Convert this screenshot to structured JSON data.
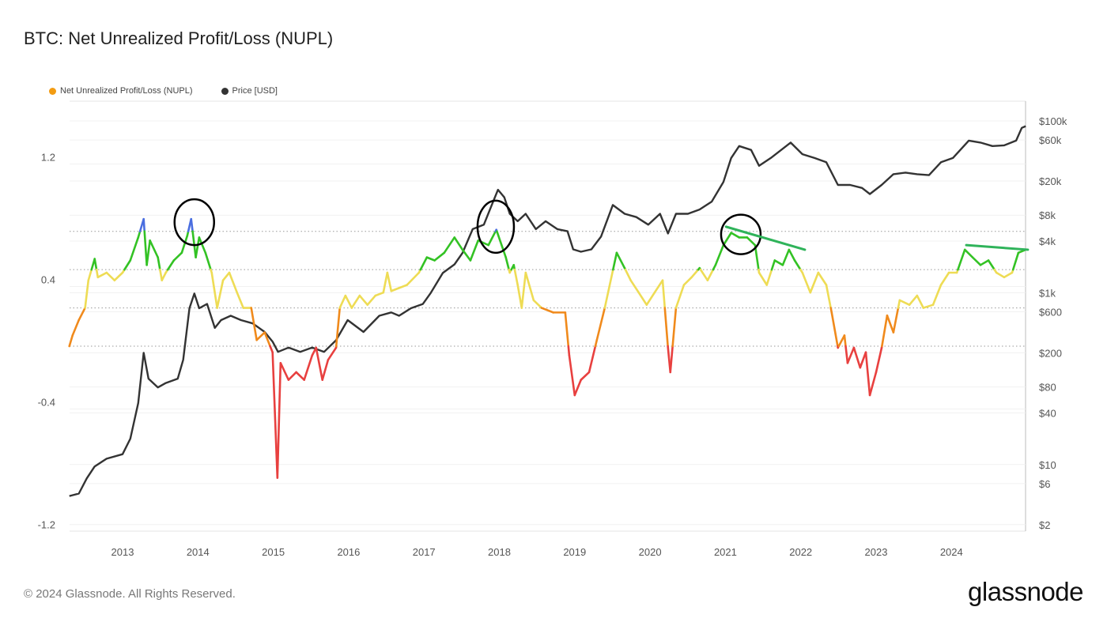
{
  "title": "BTC: Net Unrealized Profit/Loss (NUPL)",
  "footer": "© 2024 Glassnode. All Rights Reserved.",
  "logo": "glassnode",
  "chart_data": {
    "type": "line",
    "title": "BTC: Net Unrealized Profit/Loss (NUPL)",
    "legend": {
      "placement": "top-left",
      "entries": [
        {
          "name": "Net Unrealized Profit/Loss (NUPL)",
          "color": "#f39c12"
        },
        {
          "name": "Price [USD]",
          "color": "#333333"
        }
      ]
    },
    "x_axis": {
      "type": "date",
      "range": [
        "2012-04-17",
        "2024-12-26"
      ],
      "ticks": [
        "2013",
        "2014",
        "2015",
        "2016",
        "2017",
        "2018",
        "2019",
        "2020",
        "2021",
        "2022",
        "2023",
        "2024"
      ]
    },
    "y_left": {
      "range": [
        -1.2,
        1.5
      ],
      "ticks": [
        1.2,
        0.4,
        -0.4,
        -1.2
      ],
      "tick_labels": [
        "1.2",
        "0.4",
        "-0.4",
        "-1.2"
      ],
      "threshold_lines": [
        0.75,
        0.5,
        0.25,
        0
      ]
    },
    "y_right": {
      "scale": "log",
      "range": [
        2,
        100000
      ],
      "ticks": [
        100000,
        60000,
        20000,
        8000,
        4000,
        1000,
        600,
        200,
        80,
        40,
        10,
        6,
        2
      ],
      "tick_labels": [
        "$100k",
        "$60k",
        "$20k",
        "$8k",
        "$4k",
        "$1k",
        "$600",
        "$200",
        "$80",
        "$40",
        "$10",
        "$6",
        "$2"
      ]
    },
    "grid": true,
    "nupl_zone_colors": {
      "capitulation": "#e8403f",
      "hope_fear": "#f08a1c",
      "optimism_anxiety": "#eedc55",
      "belief_denial": "#33c224",
      "euphoria_greed": "#4a6ee0"
    },
    "series": [
      {
        "name": "Net Unrealized Profit/Loss (NUPL)",
        "axis": "left",
        "points": [
          [
            "2012-04-17",
            0.0
          ],
          [
            "2012-05-02",
            0.07
          ],
          [
            "2012-06-02",
            0.17
          ],
          [
            "2012-07-02",
            0.25
          ],
          [
            "2012-07-18",
            0.43
          ],
          [
            "2012-08-18",
            0.57
          ],
          [
            "2012-09-03",
            0.45
          ],
          [
            "2012-10-15",
            0.48
          ],
          [
            "2012-11-23",
            0.43
          ],
          [
            "2013-01-01",
            0.48
          ],
          [
            "2013-02-08",
            0.56
          ],
          [
            "2013-03-16",
            0.71
          ],
          [
            "2013-04-12",
            0.83
          ],
          [
            "2013-04-27",
            0.53
          ],
          [
            "2013-05-12",
            0.69
          ],
          [
            "2013-06-20",
            0.58
          ],
          [
            "2013-07-09",
            0.43
          ],
          [
            "2013-07-28",
            0.48
          ],
          [
            "2013-09-06",
            0.56
          ],
          [
            "2013-10-14",
            0.61
          ],
          [
            "2013-11-10",
            0.72
          ],
          [
            "2013-11-29",
            0.83
          ],
          [
            "2013-12-21",
            0.58
          ],
          [
            "2014-01-07",
            0.71
          ],
          [
            "2014-02-07",
            0.61
          ],
          [
            "2014-03-07",
            0.48
          ],
          [
            "2014-04-03",
            0.25
          ],
          [
            "2014-05-01",
            0.43
          ],
          [
            "2014-06-01",
            0.48
          ],
          [
            "2014-07-08",
            0.35
          ],
          [
            "2014-08-08",
            0.25
          ],
          [
            "2014-09-16",
            0.25
          ],
          [
            "2014-10-12",
            0.04
          ],
          [
            "2014-11-20",
            0.09
          ],
          [
            "2014-12-28",
            -0.04
          ],
          [
            "2015-01-21",
            -0.86
          ],
          [
            "2015-02-06",
            -0.11
          ],
          [
            "2015-03-14",
            -0.22
          ],
          [
            "2015-04-21",
            -0.17
          ],
          [
            "2015-05-29",
            -0.22
          ],
          [
            "2015-07-07",
            -0.06
          ],
          [
            "2015-07-26",
            -0.01
          ],
          [
            "2015-08-26",
            -0.22
          ],
          [
            "2015-09-23",
            -0.09
          ],
          [
            "2015-11-01",
            -0.01
          ],
          [
            "2015-11-19",
            0.25
          ],
          [
            "2015-12-16",
            0.33
          ],
          [
            "2016-01-16",
            0.25
          ],
          [
            "2016-02-24",
            0.33
          ],
          [
            "2016-04-01",
            0.27
          ],
          [
            "2016-05-09",
            0.33
          ],
          [
            "2016-06-17",
            0.35
          ],
          [
            "2016-07-06",
            0.48
          ],
          [
            "2016-07-25",
            0.36
          ],
          [
            "2016-09-02",
            0.38
          ],
          [
            "2016-10-10",
            0.4
          ],
          [
            "2016-12-07",
            0.48
          ],
          [
            "2017-01-15",
            0.58
          ],
          [
            "2017-02-22",
            0.56
          ],
          [
            "2017-04-08",
            0.61
          ],
          [
            "2017-05-27",
            0.71
          ],
          [
            "2017-07-05",
            0.63
          ],
          [
            "2017-08-13",
            0.56
          ],
          [
            "2017-09-20",
            0.69
          ],
          [
            "2017-11-09",
            0.66
          ],
          [
            "2017-12-17",
            0.76
          ],
          [
            "2018-02-02",
            0.58
          ],
          [
            "2018-02-21",
            0.48
          ],
          [
            "2018-03-10",
            0.53
          ],
          [
            "2018-03-29",
            0.4
          ],
          [
            "2018-04-18",
            0.25
          ],
          [
            "2018-05-07",
            0.48
          ],
          [
            "2018-06-15",
            0.3
          ],
          [
            "2018-07-23",
            0.25
          ],
          [
            "2018-09-19",
            0.22
          ],
          [
            "2018-11-16",
            0.22
          ],
          [
            "2018-12-05",
            -0.06
          ],
          [
            "2019-01-01",
            -0.32
          ],
          [
            "2019-02-01",
            -0.22
          ],
          [
            "2019-03-10",
            -0.17
          ],
          [
            "2019-04-17",
            0.04
          ],
          [
            "2019-05-25",
            0.25
          ],
          [
            "2019-07-22",
            0.61
          ],
          [
            "2019-08-30",
            0.51
          ],
          [
            "2019-09-29",
            0.43
          ],
          [
            "2019-11-07",
            0.35
          ],
          [
            "2019-12-15",
            0.27
          ],
          [
            "2020-01-23",
            0.35
          ],
          [
            "2020-03-01",
            0.43
          ],
          [
            "2020-03-27",
            -0.01
          ],
          [
            "2020-04-08",
            -0.17
          ],
          [
            "2020-05-05",
            0.25
          ],
          [
            "2020-06-13",
            0.4
          ],
          [
            "2020-07-20",
            0.45
          ],
          [
            "2020-08-28",
            0.51
          ],
          [
            "2020-10-06",
            0.43
          ],
          [
            "2020-11-14",
            0.53
          ],
          [
            "2020-12-22",
            0.66
          ],
          [
            "2021-01-29",
            0.74
          ],
          [
            "2021-03-07",
            0.71
          ],
          [
            "2021-04-15",
            0.71
          ],
          [
            "2021-05-23",
            0.66
          ],
          [
            "2021-06-12",
            0.48
          ],
          [
            "2021-07-19",
            0.4
          ],
          [
            "2021-08-27",
            0.56
          ],
          [
            "2021-10-05",
            0.53
          ],
          [
            "2021-11-05",
            0.63
          ],
          [
            "2021-12-02",
            0.56
          ],
          [
            "2022-01-09",
            0.48
          ],
          [
            "2022-02-17",
            0.35
          ],
          [
            "2022-03-25",
            0.48
          ],
          [
            "2022-05-03",
            0.4
          ],
          [
            "2022-05-29",
            0.22
          ],
          [
            "2022-06-29",
            -0.01
          ],
          [
            "2022-07-30",
            0.07
          ],
          [
            "2022-08-15",
            -0.11
          ],
          [
            "2022-09-15",
            -0.01
          ],
          [
            "2022-10-15",
            -0.14
          ],
          [
            "2022-11-12",
            -0.04
          ],
          [
            "2022-12-01",
            -0.32
          ],
          [
            "2023-01-01",
            -0.17
          ],
          [
            "2023-01-28",
            -0.01
          ],
          [
            "2023-02-24",
            0.2
          ],
          [
            "2023-03-24",
            0.09
          ],
          [
            "2023-04-24",
            0.3
          ],
          [
            "2023-06-10",
            0.27
          ],
          [
            "2023-07-17",
            0.33
          ],
          [
            "2023-08-17",
            0.25
          ],
          [
            "2023-10-03",
            0.27
          ],
          [
            "2023-11-11",
            0.4
          ],
          [
            "2023-12-19",
            0.48
          ],
          [
            "2024-01-27",
            0.48
          ],
          [
            "2024-03-05",
            0.63
          ],
          [
            "2024-04-12",
            0.58
          ],
          [
            "2024-05-20",
            0.53
          ],
          [
            "2024-06-28",
            0.56
          ],
          [
            "2024-08-06",
            0.48
          ],
          [
            "2024-09-13",
            0.45
          ],
          [
            "2024-10-21",
            0.48
          ],
          [
            "2024-11-21",
            0.61
          ],
          [
            "2024-12-26",
            0.63
          ]
        ]
      },
      {
        "name": "Price [USD]",
        "axis": "right",
        "color": "#333333",
        "points": [
          [
            "2012-04-17",
            4.3
          ],
          [
            "2012-06-02",
            4.6
          ],
          [
            "2012-07-10",
            6.9
          ],
          [
            "2012-08-18",
            9.5
          ],
          [
            "2012-10-15",
            11.7
          ],
          [
            "2013-01-01",
            13.2
          ],
          [
            "2013-02-08",
            20
          ],
          [
            "2013-03-16",
            52
          ],
          [
            "2013-04-12",
            200
          ],
          [
            "2013-05-05",
            100
          ],
          [
            "2013-06-20",
            79
          ],
          [
            "2013-07-28",
            89
          ],
          [
            "2013-09-25",
            100
          ],
          [
            "2013-10-21",
            166
          ],
          [
            "2013-11-21",
            660
          ],
          [
            "2013-12-14",
            980
          ],
          [
            "2014-01-07",
            660
          ],
          [
            "2014-02-15",
            740
          ],
          [
            "2014-03-22",
            390
          ],
          [
            "2014-04-22",
            480
          ],
          [
            "2014-06-08",
            540
          ],
          [
            "2014-07-27",
            480
          ],
          [
            "2014-09-23",
            440
          ],
          [
            "2014-11-20",
            350
          ],
          [
            "2014-12-28",
            270
          ],
          [
            "2015-01-24",
            205
          ],
          [
            "2015-03-14",
            230
          ],
          [
            "2015-05-10",
            205
          ],
          [
            "2015-07-07",
            230
          ],
          [
            "2015-09-04",
            205
          ],
          [
            "2015-11-01",
            280
          ],
          [
            "2015-12-27",
            480
          ],
          [
            "2016-03-12",
            350
          ],
          [
            "2016-05-28",
            540
          ],
          [
            "2016-07-25",
            590
          ],
          [
            "2016-09-02",
            540
          ],
          [
            "2016-10-29",
            660
          ],
          [
            "2016-12-26",
            740
          ],
          [
            "2017-02-04",
            1000
          ],
          [
            "2017-04-01",
            1700
          ],
          [
            "2017-05-27",
            2140
          ],
          [
            "2017-07-05",
            2900
          ],
          [
            "2017-08-24",
            5500
          ],
          [
            "2017-10-17",
            6200
          ],
          [
            "2017-11-25",
            10500
          ],
          [
            "2017-12-25",
            15800
          ],
          [
            "2018-01-25",
            12900
          ],
          [
            "2018-02-21",
            8300
          ],
          [
            "2018-03-29",
            6800
          ],
          [
            "2018-05-07",
            8300
          ],
          [
            "2018-06-26",
            5500
          ],
          [
            "2018-08-12",
            6800
          ],
          [
            "2018-10-08",
            5500
          ],
          [
            "2018-11-27",
            5200
          ],
          [
            "2018-12-24",
            3200
          ],
          [
            "2019-02-01",
            3000
          ],
          [
            "2019-03-21",
            3200
          ],
          [
            "2019-05-07",
            4500
          ],
          [
            "2019-07-03",
            10500
          ],
          [
            "2019-08-30",
            8300
          ],
          [
            "2019-10-26",
            7600
          ],
          [
            "2019-12-23",
            6200
          ],
          [
            "2020-02-19",
            8300
          ],
          [
            "2020-03-27",
            4900
          ],
          [
            "2020-05-05",
            8300
          ],
          [
            "2020-07-02",
            8300
          ],
          [
            "2020-08-28",
            9300
          ],
          [
            "2020-10-26",
            11500
          ],
          [
            "2020-12-22",
            19500
          ],
          [
            "2021-01-29",
            37000
          ],
          [
            "2021-03-07",
            51000
          ],
          [
            "2021-05-04",
            46000
          ],
          [
            "2021-06-12",
            30000
          ],
          [
            "2021-08-08",
            37000
          ],
          [
            "2021-11-13",
            56000
          ],
          [
            "2022-01-09",
            41000
          ],
          [
            "2022-03-07",
            37000
          ],
          [
            "2022-05-03",
            33000
          ],
          [
            "2022-06-29",
            18000
          ],
          [
            "2022-08-27",
            18000
          ],
          [
            "2022-10-24",
            16600
          ],
          [
            "2022-12-01",
            14100
          ],
          [
            "2023-01-28",
            18000
          ],
          [
            "2023-03-24",
            24000
          ],
          [
            "2023-05-22",
            25000
          ],
          [
            "2023-07-17",
            24000
          ],
          [
            "2023-09-14",
            23400
          ],
          [
            "2023-11-11",
            33000
          ],
          [
            "2024-01-08",
            37000
          ],
          [
            "2024-03-24",
            59000
          ],
          [
            "2024-05-20",
            56000
          ],
          [
            "2024-07-17",
            51000
          ],
          [
            "2024-09-13",
            52000
          ],
          [
            "2024-11-10",
            59000
          ],
          [
            "2024-12-07",
            83000
          ],
          [
            "2024-12-26",
            87000
          ]
        ]
      }
    ],
    "annotations": [
      {
        "type": "circle",
        "color": "#000000",
        "center": [
          "2013-12-14",
          0.81
        ]
      },
      {
        "type": "circle",
        "color": "#000000",
        "center": [
          "2017-12-14",
          0.78
        ]
      },
      {
        "type": "circle",
        "color": "#000000",
        "center": [
          "2021-03-15",
          0.73
        ]
      },
      {
        "type": "trendline",
        "color": "#2fb35a",
        "from": [
          "2021-01-04",
          0.78
        ],
        "to": [
          "2022-01-21",
          0.63
        ]
      },
      {
        "type": "trendline",
        "color": "#2fb35a",
        "from": [
          "2024-03-12",
          0.66
        ],
        "to": [
          "2025-01-06",
          0.63
        ]
      }
    ]
  }
}
